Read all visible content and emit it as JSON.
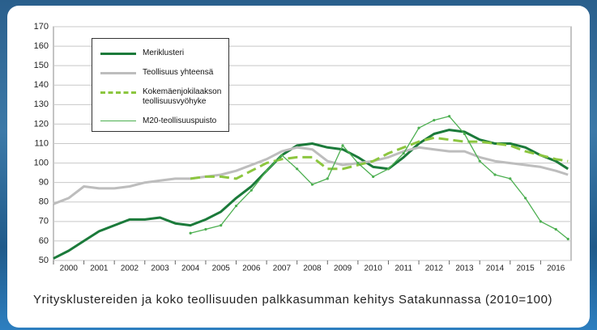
{
  "chart_data": {
    "type": "line",
    "caption": "Yritysklustereiden ja koko teollisuuden palkkasumman kehitys Satakunnassa (2010=100)",
    "x": [
      2000,
      2000.5,
      2001,
      2001.5,
      2002,
      2002.5,
      2003,
      2003.5,
      2004,
      2004.5,
      2005,
      2005.5,
      2006,
      2006.5,
      2007,
      2007.5,
      2008,
      2008.5,
      2009,
      2009.5,
      2010,
      2010.5,
      2011,
      2011.5,
      2012,
      2012.5,
      2013,
      2013.5,
      2014,
      2014.5,
      2015,
      2015.5,
      2016,
      2016.5,
      2016.9
    ],
    "series": [
      {
        "name": "Meriklusteri",
        "color": "#1b7a3a",
        "style": "solid",
        "values": [
          51,
          55,
          60,
          65,
          68,
          71,
          71,
          72,
          69,
          68,
          71,
          75,
          82,
          88,
          96,
          104,
          109,
          110,
          108,
          107,
          103,
          98,
          97,
          103,
          110,
          115,
          117,
          116,
          112,
          110,
          110,
          108,
          104,
          101,
          97
        ]
      },
      {
        "name": "Teollisuus yhteensä",
        "color": "#bdbdbd",
        "style": "solid",
        "values": [
          79,
          82,
          88,
          87,
          87,
          88,
          90,
          91,
          92,
          92,
          93,
          94,
          96,
          99,
          102,
          106,
          108,
          107,
          101,
          99,
          100,
          101,
          103,
          106,
          108,
          107,
          106,
          106,
          103,
          101,
          100,
          99,
          98,
          96,
          94
        ]
      },
      {
        "name": "Kokemäenjokilaakson teollisuusvyöhyke",
        "color": "#8cc63f",
        "style": "dashed",
        "values": [
          null,
          null,
          null,
          null,
          null,
          null,
          null,
          null,
          null,
          92,
          93,
          93,
          92,
          96,
          100,
          102,
          103,
          103,
          97,
          97,
          99,
          101,
          105,
          108,
          111,
          113,
          112,
          111,
          111,
          110,
          109,
          106,
          104,
          102,
          101
        ]
      },
      {
        "name": "M20-teollisuuspuisto",
        "color": "#4caf50",
        "style": "markers",
        "values": [
          null,
          null,
          null,
          null,
          null,
          null,
          null,
          null,
          null,
          64,
          66,
          68,
          78,
          86,
          96,
          104,
          97,
          89,
          92,
          109,
          100,
          93,
          97,
          105,
          118,
          122,
          124,
          115,
          101,
          94,
          92,
          82,
          70,
          66,
          61
        ]
      }
    ],
    "xlim": [
      2000,
      2017
    ],
    "xticks": [
      2000,
      2001,
      2002,
      2003,
      2004,
      2005,
      2006,
      2007,
      2008,
      2009,
      2010,
      2011,
      2012,
      2013,
      2014,
      2015,
      2016
    ],
    "ylim": [
      50,
      170
    ],
    "yticks": [
      50,
      60,
      70,
      80,
      90,
      100,
      110,
      120,
      130,
      140,
      150,
      160,
      170
    ],
    "grid": true
  }
}
